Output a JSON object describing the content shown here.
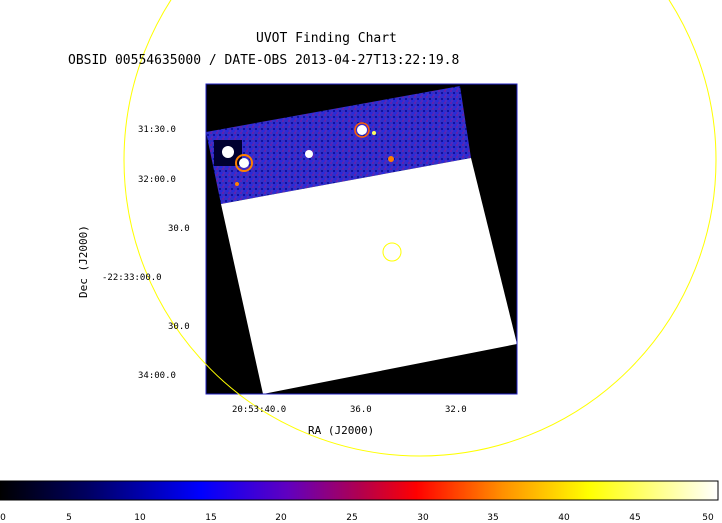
{
  "chart_data": {
    "type": "heatmap",
    "title": "UVOT Finding Chart",
    "subtitle": "OBSID 00554635000 / DATE-OBS 2013-04-27T13:22:19.8",
    "xlabel": "RA (J2000)",
    "ylabel": "Dec (J2000)",
    "x_ticks": [
      "20:53:40.0",
      "36.0",
      "32.0"
    ],
    "y_ticks": [
      "31:30.0",
      "32:00.0",
      "30.0",
      "-22:33:00.0",
      "30.0",
      "34:00.0"
    ],
    "colorbar": {
      "ticks": [
        "0",
        "5",
        "10",
        "15",
        "20",
        "25",
        "30",
        "35",
        "40",
        "45",
        "50"
      ],
      "range": [
        0,
        50
      ]
    },
    "colors": {
      "overlay_circle": "#ffff00",
      "frame": "#2020c0",
      "background": "#000000",
      "saturated": "#ffffff"
    }
  }
}
